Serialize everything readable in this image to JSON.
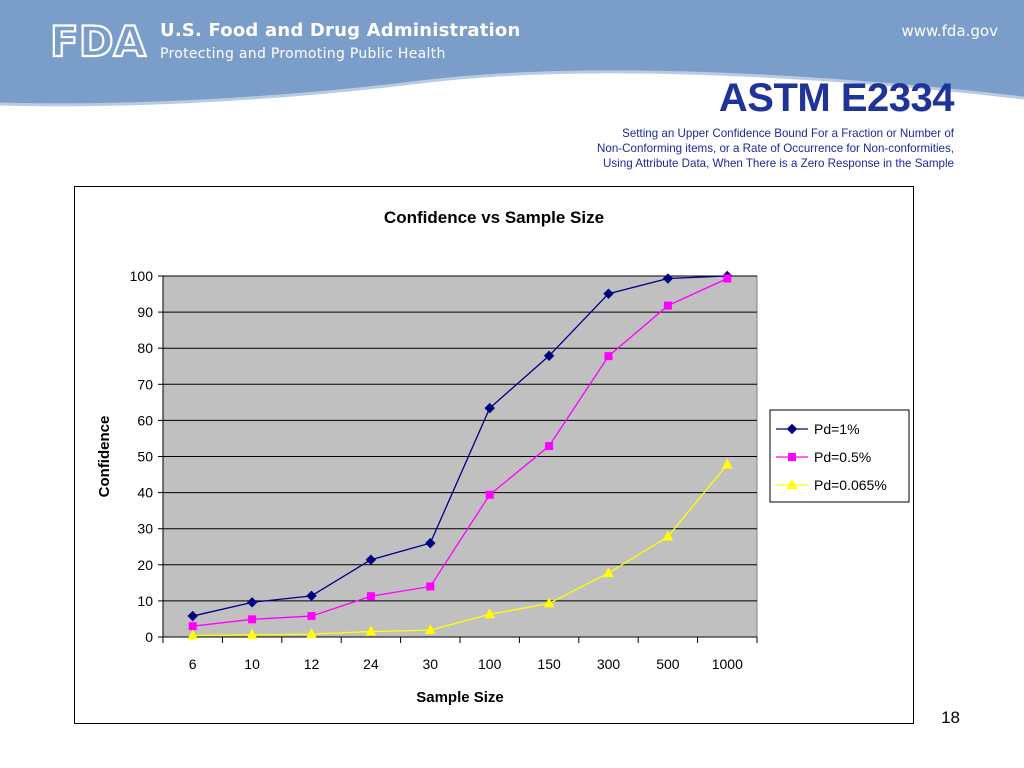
{
  "header": {
    "agency": "U.S. Food and Drug Administration",
    "tagline": "Protecting and Promoting Public Health",
    "site": "www.fda.gov",
    "logo_text": "FDA"
  },
  "slide": {
    "title": "ASTM E2334",
    "subtitle": "Setting an Upper Confidence Bound For a Fraction or Number of Non-Conforming items, or a Rate of Occurrence for Non-conformities, Using Attribute Data, When There is a Zero Response in the Sample",
    "page_number": "18"
  },
  "colors": {
    "header_blue": "#7b9dc9",
    "title_blue": "#1f3399",
    "plot_bg": "#c0c0c0"
  },
  "chart_data": {
    "type": "line",
    "title": "Confidence vs Sample Size",
    "xlabel": "Sample Size",
    "ylabel": "Confidence",
    "categories": [
      "6",
      "10",
      "12",
      "24",
      "30",
      "100",
      "150",
      "300",
      "500",
      "1000"
    ],
    "ylim": [
      0,
      100
    ],
    "yticks": [
      0,
      10,
      20,
      30,
      40,
      50,
      60,
      70,
      80,
      90,
      100
    ],
    "grid": true,
    "legend_position": "right",
    "series": [
      {
        "name": "Pd=1%",
        "color": "#000080",
        "marker": "diamond",
        "values": [
          5.8,
          9.6,
          11.4,
          21.4,
          26.0,
          63.4,
          77.9,
          95.1,
          99.3,
          100.0
        ]
      },
      {
        "name": "Pd=0.5%",
        "color": "#ff00ff",
        "marker": "square",
        "values": [
          3.0,
          4.9,
          5.8,
          11.3,
          14.0,
          39.4,
          52.9,
          77.8,
          91.8,
          99.3
        ]
      },
      {
        "name": "Pd=0.065%",
        "color": "#ffff00",
        "marker": "triangle",
        "values": [
          0.4,
          0.6,
          0.8,
          1.5,
          1.9,
          6.3,
          9.3,
          17.7,
          27.8,
          47.8
        ]
      }
    ]
  }
}
